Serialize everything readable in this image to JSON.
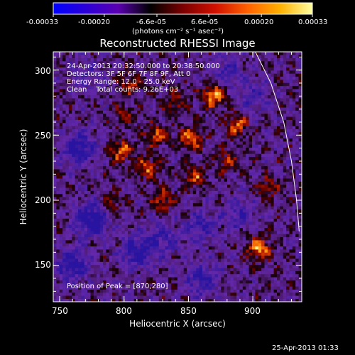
{
  "colorbar": {
    "ticks": [
      "-0.00033",
      "-0.00020",
      "-6.6e-05",
      "6.6e-05",
      "0.00020",
      "0.00033"
    ],
    "tick_values": [
      -0.00033,
      -0.0002,
      -6.6e-05,
      6.6e-05,
      0.0002,
      0.00033
    ],
    "unit_label": "(photons cm⁻² s⁻¹ asec⁻²)",
    "range": [
      -0.00033,
      0.00033
    ],
    "colors": [
      "#0000ff",
      "#2b00d8",
      "#5a00b0",
      "#000000",
      "#7a0000",
      "#d01000",
      "#ff6000",
      "#ffb000",
      "#ffffa0"
    ]
  },
  "info": {
    "line1": "24-Apr-2013 20:32:50.000 to 20:38:50.000",
    "line2": "Detectors: 3F 5F 6F 7F 8F 9F, Att 0",
    "line3": "Energy Range: 12.0 - 25.0 keV",
    "line4": "Clean    Total counts: 9.26E+03",
    "peak": "Position of Peak = [870,280]"
  },
  "footer": {
    "timestamp": "25-Apr-2013 01:33"
  },
  "chart_data": {
    "type": "heatmap",
    "title": "Reconstructed RHESSI Image",
    "xlabel": "Heliocentric X (arcsec)",
    "ylabel": "Heliocentric Y (arcsec)",
    "xlim": [
      745,
      938
    ],
    "ylim": [
      122,
      314
    ],
    "xticks": [
      "750",
      "800",
      "850",
      "900"
    ],
    "yticks": [
      "150",
      "200",
      "250",
      "300"
    ],
    "xtick_values": [
      750,
      800,
      850,
      900
    ],
    "ytick_values": [
      150,
      200,
      250,
      300
    ],
    "peak_position": [
      870,
      280
    ],
    "bright_sources": [
      {
        "x": 870,
        "y": 281,
        "level": 1.0
      },
      {
        "x": 905,
        "y": 163,
        "level": 0.95
      },
      {
        "x": 852,
        "y": 248,
        "level": 0.8
      },
      {
        "x": 888,
        "y": 258,
        "level": 0.8
      },
      {
        "x": 798,
        "y": 238,
        "level": 0.8
      },
      {
        "x": 825,
        "y": 250,
        "level": 0.7
      },
      {
        "x": 818,
        "y": 225,
        "level": 0.7
      },
      {
        "x": 855,
        "y": 218,
        "level": 0.65
      },
      {
        "x": 830,
        "y": 200,
        "level": 0.6
      },
      {
        "x": 805,
        "y": 290,
        "level": 0.55
      },
      {
        "x": 840,
        "y": 275,
        "level": 0.5
      },
      {
        "x": 912,
        "y": 210,
        "level": 0.5
      },
      {
        "x": 790,
        "y": 195,
        "level": 0.45
      },
      {
        "x": 880,
        "y": 230,
        "level": 0.45
      },
      {
        "x": 800,
        "y": 265,
        "level": 0.4
      }
    ],
    "dark_regions": [
      {
        "x": 765,
        "y": 240,
        "level": -0.8
      },
      {
        "x": 775,
        "y": 185,
        "level": -0.9
      },
      {
        "x": 760,
        "y": 150,
        "level": -0.7
      },
      {
        "x": 810,
        "y": 160,
        "level": -0.75
      },
      {
        "x": 860,
        "y": 140,
        "level": -0.6
      },
      {
        "x": 860,
        "y": 180,
        "level": -0.55
      },
      {
        "x": 890,
        "y": 190,
        "level": -0.5
      },
      {
        "x": 880,
        "y": 300,
        "level": -0.45
      },
      {
        "x": 900,
        "y": 280,
        "level": -0.45
      },
      {
        "x": 830,
        "y": 170,
        "level": -0.5
      },
      {
        "x": 770,
        "y": 295,
        "level": -0.35
      }
    ],
    "limb": [
      [
        902,
        314
      ],
      [
        914,
        290
      ],
      [
        924,
        260
      ],
      [
        930,
        230
      ],
      [
        934,
        200
      ],
      [
        936,
        176
      ]
    ]
  }
}
